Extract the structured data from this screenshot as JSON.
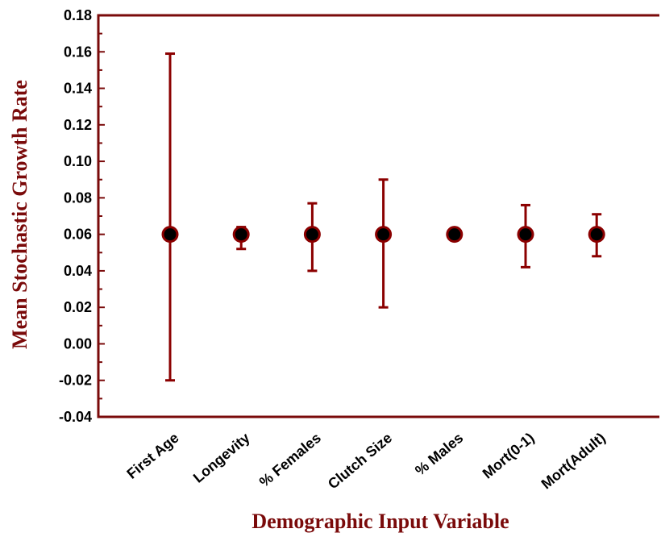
{
  "colors": {
    "axis": "#7a0a0a",
    "errorbar": "#8b0000",
    "marker_fill": "#000000",
    "marker_stroke": "#8b0000",
    "label": "#7a0a0a"
  },
  "chart_data": {
    "type": "scatter",
    "title": "",
    "xlabel": "Demographic Input Variable",
    "ylabel": "Mean Stochastic Growth Rate",
    "ylim": [
      -0.04,
      0.18
    ],
    "yticks": [
      "-0.04",
      "-0.02",
      "0.00",
      "0.02",
      "0.04",
      "0.06",
      "0.08",
      "0.10",
      "0.12",
      "0.14",
      "0.16",
      "0.18"
    ],
    "categories": [
      "First Age",
      "Longevity",
      "% Females",
      "Clutch Size",
      "% Males",
      "Mort(0-1)",
      "Mort(Adult)"
    ],
    "series": [
      {
        "values": [
          0.06,
          0.06,
          0.06,
          0.06,
          0.06,
          0.06,
          0.06
        ],
        "error_low": [
          -0.02,
          0.052,
          0.04,
          0.02,
          0.06,
          0.042,
          0.048
        ],
        "error_high": [
          0.159,
          0.064,
          0.077,
          0.09,
          0.06,
          0.076,
          0.071
        ]
      }
    ],
    "grid": false,
    "legend": "none"
  }
}
